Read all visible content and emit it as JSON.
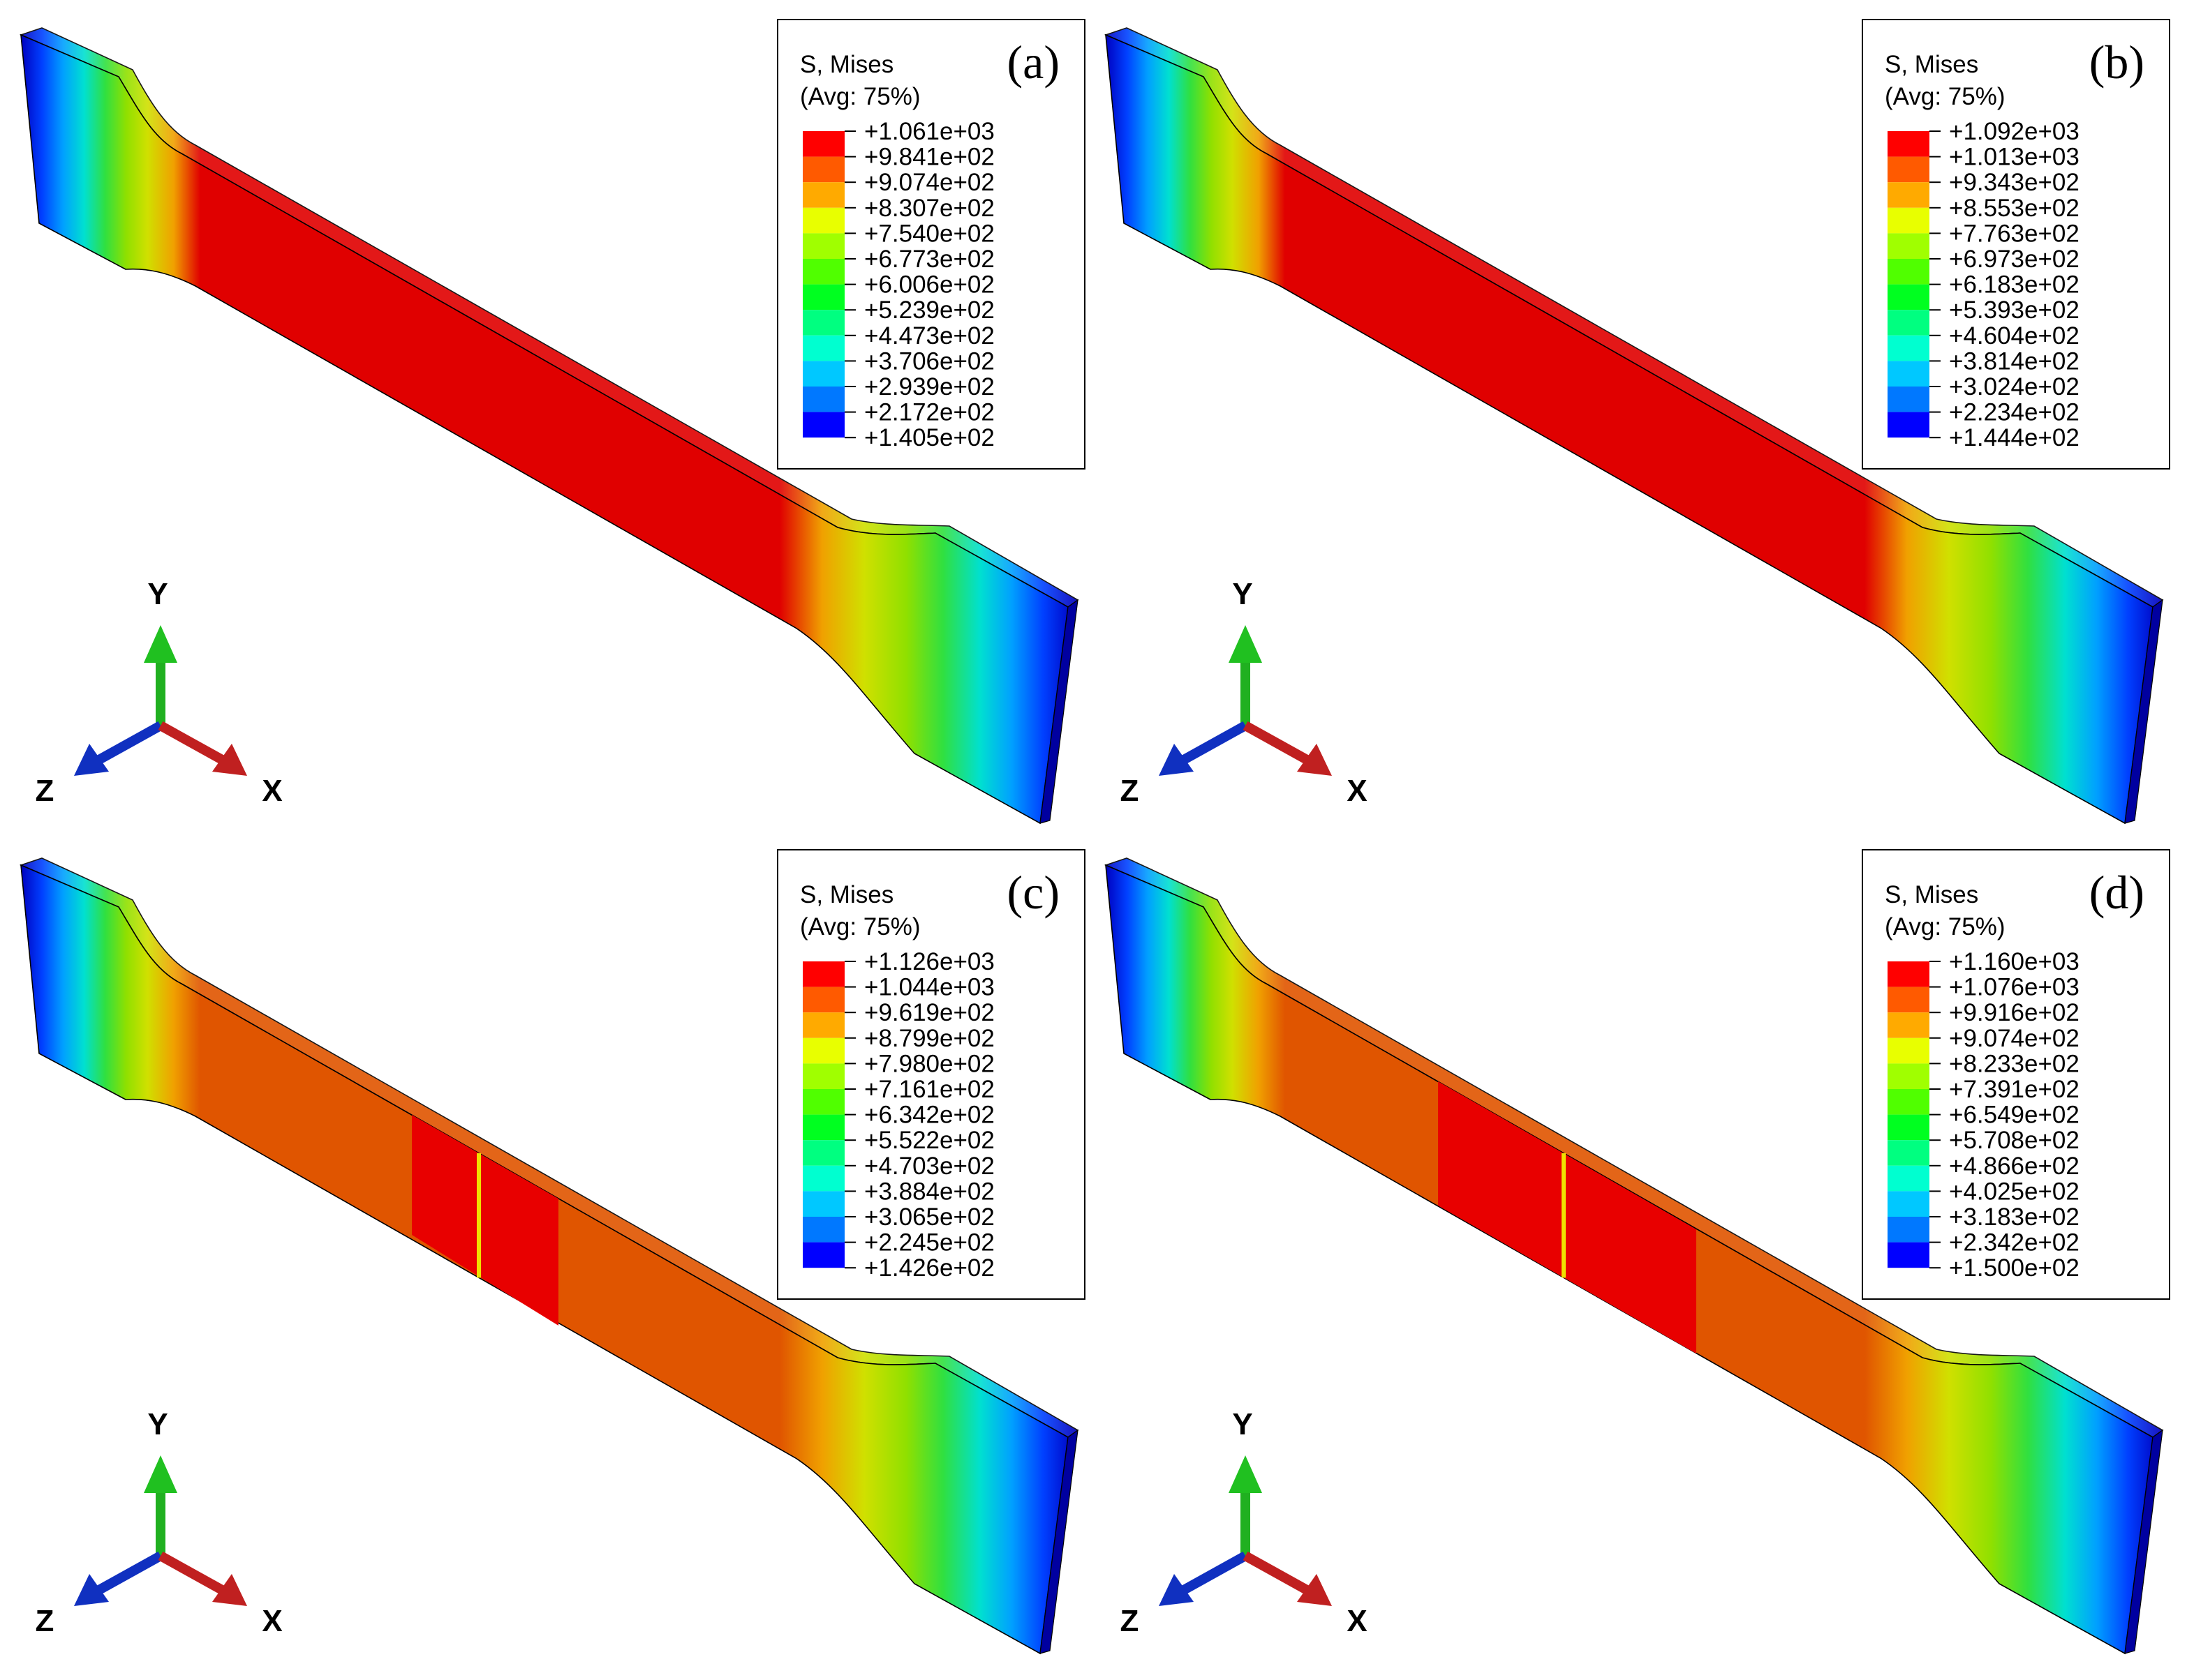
{
  "panels": [
    {
      "label": "(a)",
      "legend": {
        "title": "S, Mises",
        "subtitle": "(Avg: 75%)",
        "values": [
          "+1.061e+03",
          "+9.841e+02",
          "+9.074e+02",
          "+8.307e+02",
          "+7.540e+02",
          "+6.773e+02",
          "+6.006e+02",
          "+5.239e+02",
          "+4.473e+02",
          "+3.706e+02",
          "+2.939e+02",
          "+2.172e+02",
          "+1.405e+02"
        ]
      },
      "axes": {
        "y": "Y",
        "z": "Z",
        "x": "X"
      }
    },
    {
      "label": "(b)",
      "legend": {
        "title": "S, Mises",
        "subtitle": "(Avg: 75%)",
        "values": [
          "+1.092e+03",
          "+1.013e+03",
          "+9.343e+02",
          "+8.553e+02",
          "+7.763e+02",
          "+6.973e+02",
          "+6.183e+02",
          "+5.393e+02",
          "+4.604e+02",
          "+3.814e+02",
          "+3.024e+02",
          "+2.234e+02",
          "+1.444e+02"
        ]
      },
      "axes": {
        "y": "Y",
        "z": "Z",
        "x": "X"
      }
    },
    {
      "label": "(c)",
      "legend": {
        "title": "S, Mises",
        "subtitle": "(Avg: 75%)",
        "values": [
          "+1.126e+03",
          "+1.044e+03",
          "+9.619e+02",
          "+8.799e+02",
          "+7.980e+02",
          "+7.161e+02",
          "+6.342e+02",
          "+5.522e+02",
          "+4.703e+02",
          "+3.884e+02",
          "+3.065e+02",
          "+2.245e+02",
          "+1.426e+02"
        ]
      },
      "axes": {
        "y": "Y",
        "z": "Z",
        "x": "X"
      }
    },
    {
      "label": "(d)",
      "legend": {
        "title": "S, Mises",
        "subtitle": "(Avg: 75%)",
        "values": [
          "+1.160e+03",
          "+1.076e+03",
          "+9.916e+02",
          "+9.074e+02",
          "+8.233e+02",
          "+7.391e+02",
          "+6.549e+02",
          "+5.708e+02",
          "+4.866e+02",
          "+4.025e+02",
          "+3.183e+02",
          "+2.342e+02",
          "+1.500e+02"
        ]
      },
      "axes": {
        "y": "Y",
        "z": "Z",
        "x": "X"
      }
    }
  ]
}
